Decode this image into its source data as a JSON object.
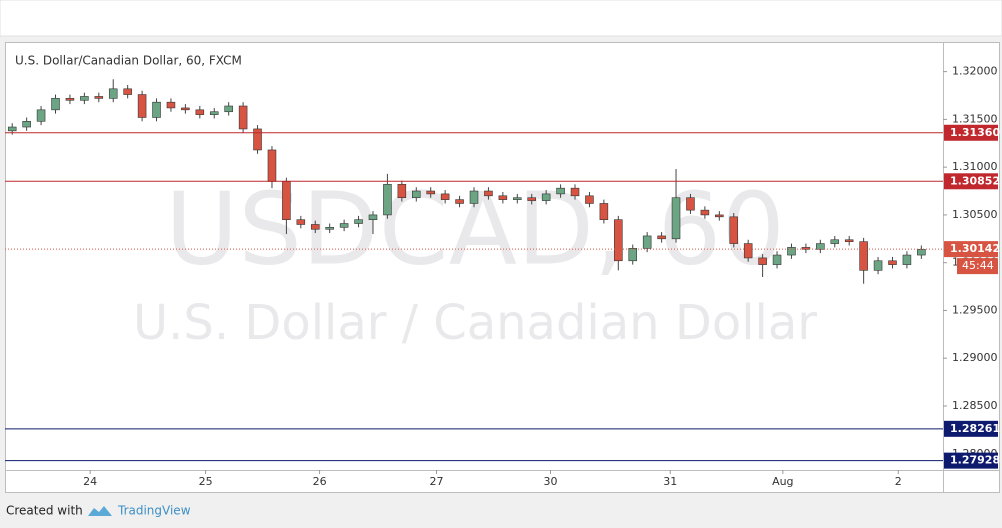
{
  "chart_data": {
    "type": "candlestick",
    "title": "U.S. Dollar/Canadian Dollar, 60, FXCM",
    "watermark": "USDCAD, 60",
    "watermark_subtitle": "U.S. Dollar / Canadian Dollar",
    "up_color": "#6ba583",
    "down_color": "#d75442",
    "xlim": [
      -0.5,
      64.5
    ],
    "xticks": [
      {
        "value": 5.4,
        "label": "24"
      },
      {
        "value": 13.4,
        "label": "25"
      },
      {
        "value": 21.3,
        "label": "26"
      },
      {
        "value": 29.4,
        "label": "27"
      },
      {
        "value": 37.3,
        "label": "30"
      },
      {
        "value": 45.6,
        "label": "31"
      },
      {
        "value": 53.4,
        "label": "Aug"
      },
      {
        "value": 61.4,
        "label": "2"
      }
    ],
    "ylim": [
      1.2783,
      1.3231
    ],
    "yticks": [
      {
        "value": 1.28,
        "label": "1.28000"
      },
      {
        "value": 1.285,
        "label": "1.28500"
      },
      {
        "value": 1.29,
        "label": "1.29000"
      },
      {
        "value": 1.295,
        "label": "1.29500"
      },
      {
        "value": 1.3,
        "label": "1.30000"
      },
      {
        "value": 1.305,
        "label": "1.30500"
      },
      {
        "value": 1.31,
        "label": "1.31000"
      },
      {
        "value": 1.315,
        "label": "1.31500"
      },
      {
        "value": 1.32,
        "label": "1.32000"
      }
    ],
    "open": [
      1.3138,
      1.3142,
      1.3148,
      1.316,
      1.3172,
      1.317,
      1.3174,
      1.3172,
      1.3182,
      1.3176,
      1.3152,
      1.3168,
      1.3162,
      1.316,
      1.3155,
      1.3158,
      1.3164,
      1.314,
      1.3118,
      1.3085,
      1.3045,
      1.304,
      1.3035,
      1.3037,
      1.3041,
      1.3045,
      1.305,
      1.3082,
      1.3068,
      1.3075,
      1.3072,
      1.3066,
      1.3062,
      1.3075,
      1.307,
      1.3066,
      1.3068,
      1.3065,
      1.3072,
      1.3078,
      1.307,
      1.3062,
      1.3045,
      1.3002,
      1.3015,
      1.3028,
      1.3025,
      1.3068,
      1.3055,
      1.305,
      1.3048,
      1.302,
      1.3005,
      1.2998,
      1.3008,
      1.3016,
      1.3014,
      1.302,
      1.3024,
      1.3022,
      1.2992,
      1.3002,
      1.2998,
      1.3008
    ],
    "high": [
      1.3146,
      1.3152,
      1.3164,
      1.3176,
      1.3176,
      1.3178,
      1.3178,
      1.3192,
      1.3186,
      1.318,
      1.3172,
      1.3172,
      1.3166,
      1.3164,
      1.3162,
      1.3168,
      1.3168,
      1.3144,
      1.3122,
      1.3089,
      1.3049,
      1.3044,
      1.3041,
      1.3045,
      1.3049,
      1.3054,
      1.3093,
      1.3086,
      1.3079,
      1.3079,
      1.3076,
      1.307,
      1.3079,
      1.3079,
      1.3074,
      1.3072,
      1.3072,
      1.3076,
      1.3082,
      1.3082,
      1.3074,
      1.3066,
      1.3049,
      1.3019,
      1.3032,
      1.3032,
      1.3098,
      1.3072,
      1.3059,
      1.3054,
      1.3052,
      1.3024,
      1.3009,
      1.3012,
      1.302,
      1.302,
      1.3024,
      1.3028,
      1.3028,
      1.3026,
      1.3006,
      1.3006,
      1.3012,
      1.3018
    ],
    "low": [
      1.3134,
      1.3138,
      1.3144,
      1.3156,
      1.3166,
      1.3166,
      1.3168,
      1.3168,
      1.3172,
      1.3148,
      1.3148,
      1.3158,
      1.3156,
      1.3151,
      1.3151,
      1.3154,
      1.3136,
      1.3114,
      1.3078,
      1.303,
      1.3036,
      1.3031,
      1.3031,
      1.3033,
      1.3037,
      1.303,
      1.3046,
      1.3064,
      1.3064,
      1.3068,
      1.3062,
      1.3058,
      1.3058,
      1.3066,
      1.3062,
      1.3062,
      1.3061,
      1.3061,
      1.3068,
      1.3066,
      1.3058,
      1.3041,
      1.2992,
      1.2998,
      1.3011,
      1.3021,
      1.3021,
      1.3051,
      1.3046,
      1.3044,
      1.3016,
      1.3001,
      1.2985,
      1.2994,
      1.3004,
      1.301,
      1.301,
      1.3016,
      1.3018,
      1.2978,
      1.2988,
      1.2994,
      1.2994,
      1.3004
    ],
    "close": [
      1.3142,
      1.3148,
      1.316,
      1.3172,
      1.317,
      1.3174,
      1.3172,
      1.3182,
      1.3176,
      1.3152,
      1.3168,
      1.3162,
      1.316,
      1.3155,
      1.3158,
      1.3164,
      1.314,
      1.3118,
      1.3085,
      1.3045,
      1.304,
      1.3035,
      1.3037,
      1.3041,
      1.3045,
      1.305,
      1.3082,
      1.3068,
      1.3075,
      1.3072,
      1.3066,
      1.3062,
      1.3075,
      1.307,
      1.3066,
      1.3068,
      1.3065,
      1.3072,
      1.3078,
      1.307,
      1.3062,
      1.3045,
      1.3002,
      1.3015,
      1.3028,
      1.3025,
      1.3068,
      1.3055,
      1.305,
      1.3048,
      1.302,
      1.3005,
      1.2998,
      1.3008,
      1.3016,
      1.3014,
      1.302,
      1.3024,
      1.3022,
      1.2992,
      1.3002,
      1.2998,
      1.3008,
      1.3014
    ],
    "levels": [
      {
        "value": 1.3136,
        "label": "1.31360",
        "color": "#c0282d"
      },
      {
        "value": 1.30852,
        "label": "1.30852",
        "color": "#c0282d"
      },
      {
        "value": 1.28261,
        "label": "1.28261",
        "color": "#0d1a6e"
      },
      {
        "value": 1.27928,
        "label": "1.27928",
        "color": "#0d1a6e"
      }
    ],
    "last_price": {
      "value": 1.30142,
      "label": "1.30142",
      "countdown": "45:44",
      "color": "#d75442"
    }
  },
  "footer": {
    "text": "Created with",
    "brand": "TradingView"
  }
}
